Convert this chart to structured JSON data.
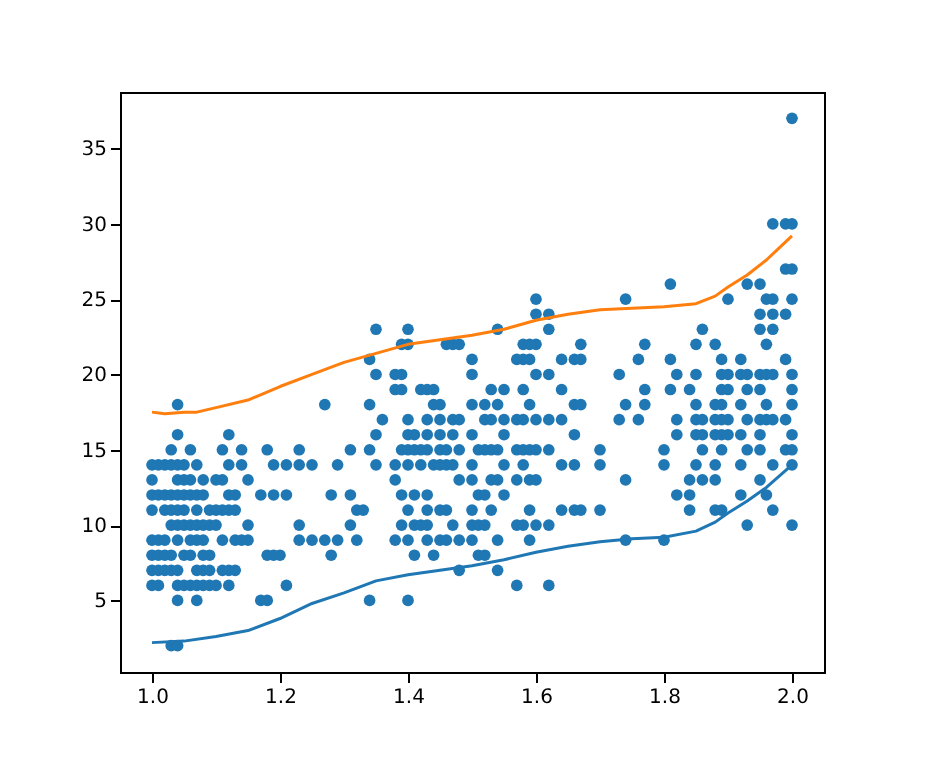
{
  "chart_data": {
    "type": "scatter",
    "xlim": [
      0.95,
      2.05
    ],
    "ylim": [
      0.25,
      38.75
    ],
    "xticks": [
      {
        "value": 1,
        "label": "1.0"
      },
      1.2,
      1.4,
      1.6,
      1.8,
      {
        "value": 2,
        "label": "2.0"
      }
    ],
    "yticks": [
      5,
      10,
      15,
      20,
      25,
      30,
      35
    ],
    "grid": false,
    "series": [
      {
        "marker": "circle",
        "color": "#1f77b4",
        "x": [
          1,
          1,
          1,
          1,
          1,
          1,
          1,
          1,
          1.01,
          1.01,
          1.01,
          1.01,
          1.01,
          1.01,
          1.02,
          1.02,
          1.02,
          1.02,
          1.02,
          1.02,
          1.03,
          1.03,
          1.03,
          1.03,
          1.03,
          1.03,
          1.03,
          1.03,
          1.04,
          1.04,
          1.04,
          1.04,
          1.04,
          1.04,
          1.04,
          1.04,
          1.04,
          1.04,
          1.04,
          1.04,
          1.05,
          1.05,
          1.05,
          1.05,
          1.05,
          1.05,
          1.05,
          1.06,
          1.06,
          1.06,
          1.06,
          1.06,
          1.06,
          1.06,
          1.07,
          1.07,
          1.07,
          1.07,
          1.07,
          1.07,
          1.07,
          1.07,
          1.08,
          1.08,
          1.08,
          1.08,
          1.08,
          1.08,
          1.08,
          1.09,
          1.09,
          1.09,
          1.09,
          1.09,
          1.1,
          1.1,
          1.1,
          1.1,
          1.11,
          1.11,
          1.11,
          1.11,
          1.11,
          1.12,
          1.12,
          1.12,
          1.12,
          1.12,
          1.12,
          1.13,
          1.13,
          1.13,
          1.13,
          1.14,
          1.14,
          1.14,
          1.15,
          1.15,
          1.15,
          1.17,
          1.17,
          1.18,
          1.18,
          1.18,
          1.19,
          1.19,
          1.19,
          1.2,
          1.21,
          1.21,
          1.21,
          1.23,
          1.23,
          1.23,
          1.23,
          1.25,
          1.25,
          1.27,
          1.27,
          1.28,
          1.28,
          1.29,
          1.29,
          1.31,
          1.31,
          1.31,
          1.32,
          1.32,
          1.33,
          1.34,
          1.34,
          1.34,
          1.34,
          1.35,
          1.35,
          1.35,
          1.35,
          1.36,
          1.38,
          1.38,
          1.38,
          1.38,
          1.38,
          1.39,
          1.39,
          1.39,
          1.39,
          1.39,
          1.39,
          1.4,
          1.4,
          1.4,
          1.4,
          1.4,
          1.4,
          1.4,
          1.4,
          1.4,
          1.41,
          1.41,
          1.41,
          1.41,
          1.41,
          1.42,
          1.42,
          1.42,
          1.42,
          1.43,
          1.43,
          1.43,
          1.43,
          1.43,
          1.43,
          1.43,
          1.43,
          1.44,
          1.44,
          1.44,
          1.44,
          1.45,
          1.45,
          1.45,
          1.45,
          1.45,
          1.45,
          1.45,
          1.46,
          1.46,
          1.46,
          1.46,
          1.46,
          1.47,
          1.47,
          1.47,
          1.47,
          1.47,
          1.48,
          1.48,
          1.48,
          1.48,
          1.48,
          1.48,
          1.5,
          1.5,
          1.5,
          1.5,
          1.5,
          1.5,
          1.5,
          1.5,
          1.5,
          1.51,
          1.51,
          1.51,
          1.51,
          1.52,
          1.52,
          1.52,
          1.52,
          1.52,
          1.52,
          1.53,
          1.53,
          1.53,
          1.53,
          1.53,
          1.54,
          1.54,
          1.54,
          1.54,
          1.54,
          1.54,
          1.55,
          1.55,
          1.55,
          1.55,
          1.55,
          1.57,
          1.57,
          1.57,
          1.57,
          1.57,
          1.57,
          1.58,
          1.58,
          1.58,
          1.58,
          1.58,
          1.58,
          1.58,
          1.59,
          1.59,
          1.59,
          1.59,
          1.59,
          1.59,
          1.59,
          1.6,
          1.6,
          1.6,
          1.6,
          1.6,
          1.6,
          1.6,
          1.6,
          1.62,
          1.62,
          1.62,
          1.62,
          1.62,
          1.62,
          1.62,
          1.64,
          1.64,
          1.64,
          1.64,
          1.64,
          1.66,
          1.66,
          1.66,
          1.66,
          1.66,
          1.67,
          1.67,
          1.67,
          1.67,
          1.7,
          1.7,
          1.7,
          1.73,
          1.73,
          1.74,
          1.74,
          1.74,
          1.74,
          1.76,
          1.76,
          1.77,
          1.77,
          1.77,
          1.8,
          1.8,
          1.8,
          1.81,
          1.81,
          1.81,
          1.82,
          1.82,
          1.82,
          1.82,
          1.84,
          1.84,
          1.84,
          1.84,
          1.85,
          1.85,
          1.85,
          1.85,
          1.85,
          1.85,
          1.86,
          1.86,
          1.86,
          1.86,
          1.86,
          1.88,
          1.88,
          1.88,
          1.88,
          1.88,
          1.88,
          1.88,
          1.89,
          1.89,
          1.89,
          1.89,
          1.89,
          1.89,
          1.89,
          1.89,
          1.9,
          1.9,
          1.9,
          1.9,
          1.9,
          1.92,
          1.92,
          1.92,
          1.92,
          1.92,
          1.92,
          1.93,
          1.93,
          1.93,
          1.93,
          1.93,
          1.93,
          1.95,
          1.95,
          1.95,
          1.95,
          1.95,
          1.95,
          1.95,
          1.95,
          1.95,
          1.96,
          1.96,
          1.96,
          1.96,
          1.96,
          1.96,
          1.97,
          1.97,
          1.97,
          1.97,
          1.97,
          1.97,
          1.97,
          1.97,
          1.99,
          1.99,
          1.99,
          1.99,
          1.99,
          1.99,
          2,
          2,
          2,
          2,
          2,
          2,
          2,
          2,
          2,
          2,
          2
        ],
        "values": [
          14,
          13,
          12,
          11,
          9,
          8,
          7,
          6,
          14,
          12,
          9,
          8,
          7,
          6,
          14,
          12,
          11,
          9,
          8,
          7,
          15,
          14,
          12,
          11,
          10,
          8,
          7,
          2,
          18,
          16,
          14,
          13,
          12,
          11,
          10,
          9,
          7,
          6,
          5,
          2,
          14,
          13,
          12,
          11,
          10,
          8,
          6,
          15,
          13,
          12,
          10,
          9,
          8,
          6,
          14,
          12,
          11,
          10,
          9,
          7,
          6,
          5,
          13,
          12,
          10,
          9,
          8,
          7,
          6,
          11,
          10,
          8,
          7,
          6,
          13,
          11,
          10,
          6,
          15,
          13,
          11,
          9,
          7,
          16,
          14,
          12,
          11,
          7,
          6,
          12,
          11,
          9,
          7,
          15,
          14,
          9,
          13,
          10,
          9,
          12,
          5,
          15,
          8,
          5,
          14,
          12,
          8,
          8,
          14,
          12,
          6,
          15,
          14,
          10,
          9,
          14,
          9,
          18,
          9,
          12,
          8,
          14,
          9,
          15,
          12,
          10,
          11,
          9,
          11,
          21,
          18,
          15,
          5,
          23,
          20,
          16,
          14,
          17,
          20,
          19,
          14,
          13,
          9,
          22,
          20,
          19,
          15,
          12,
          10,
          23,
          22,
          17,
          16,
          15,
          14,
          11,
          9,
          5,
          16,
          15,
          12,
          10,
          8,
          19,
          15,
          14,
          10,
          19,
          17,
          16,
          15,
          12,
          11,
          10,
          9,
          19,
          18,
          14,
          8,
          18,
          17,
          16,
          15,
          14,
          11,
          9,
          22,
          15,
          14,
          11,
          9,
          22,
          17,
          16,
          14,
          10,
          22,
          17,
          15,
          13,
          9,
          7,
          21,
          20,
          18,
          16,
          14,
          13,
          11,
          10,
          9,
          15,
          12,
          10,
          8,
          18,
          17,
          15,
          12,
          10,
          8,
          19,
          17,
          15,
          13,
          11,
          23,
          18,
          15,
          13,
          9,
          7,
          19,
          17,
          16,
          14,
          12,
          21,
          17,
          15,
          13,
          10,
          6,
          22,
          21,
          19,
          17,
          15,
          14,
          10,
          22,
          21,
          18,
          15,
          13,
          11,
          9,
          25,
          24,
          22,
          20,
          17,
          15,
          13,
          10,
          24,
          23,
          20,
          17,
          15,
          10,
          6,
          21,
          19,
          17,
          14,
          11,
          21,
          18,
          16,
          14,
          11,
          22,
          21,
          18,
          11,
          15,
          14,
          11,
          20,
          17,
          25,
          18,
          13,
          9,
          21,
          17,
          22,
          19,
          18,
          15,
          14,
          9,
          26,
          21,
          19,
          20,
          17,
          16,
          12,
          19,
          13,
          12,
          11,
          22,
          20,
          18,
          17,
          16,
          14,
          23,
          17,
          16,
          15,
          13,
          22,
          18,
          17,
          16,
          14,
          13,
          11,
          21,
          20,
          19,
          18,
          17,
          16,
          15,
          11,
          25,
          20,
          19,
          17,
          16,
          21,
          20,
          18,
          16,
          14,
          12,
          26,
          20,
          19,
          17,
          15,
          10,
          26,
          24,
          23,
          20,
          19,
          17,
          16,
          15,
          13,
          25,
          22,
          20,
          18,
          17,
          12,
          30,
          25,
          24,
          23,
          20,
          17,
          14,
          11,
          30,
          27,
          24,
          21,
          17,
          15,
          37,
          30,
          27,
          25,
          20,
          19,
          18,
          16,
          15,
          14,
          10
        ]
      },
      {
        "type": "line",
        "color": "#ff7f0e",
        "x": [
          1,
          1.02,
          1.05,
          1.07,
          1.1,
          1.15,
          1.2,
          1.25,
          1.3,
          1.35,
          1.4,
          1.45,
          1.5,
          1.55,
          1.6,
          1.65,
          1.7,
          1.75,
          1.8,
          1.85,
          1.88,
          1.9,
          1.93,
          1.96,
          2
        ],
        "values": [
          17.5,
          17.4,
          17.5,
          17.5,
          17.8,
          18.3,
          19.2,
          20,
          20.8,
          21.4,
          22,
          22.3,
          22.6,
          23,
          23.6,
          24,
          24.3,
          24.4,
          24.5,
          24.7,
          25.2,
          25.8,
          26.6,
          27.6,
          29.2
        ]
      },
      {
        "type": "line",
        "color": "#1f77b4",
        "x": [
          1,
          1.05,
          1.1,
          1.15,
          1.2,
          1.25,
          1.3,
          1.35,
          1.4,
          1.45,
          1.5,
          1.55,
          1.6,
          1.65,
          1.7,
          1.75,
          1.8,
          1.85,
          1.88,
          1.9,
          1.93,
          1.96,
          2
        ],
        "values": [
          2.2,
          2.3,
          2.6,
          3,
          3.8,
          4.8,
          5.5,
          6.3,
          6.7,
          7,
          7.3,
          7.7,
          8.2,
          8.6,
          8.9,
          9.1,
          9.2,
          9.6,
          10.2,
          10.8,
          11.6,
          12.5,
          14
        ]
      }
    ]
  }
}
